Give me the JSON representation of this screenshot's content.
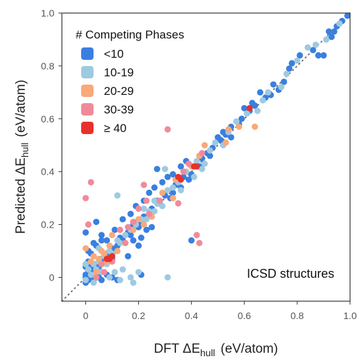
{
  "chart_data": {
    "type": "scatter",
    "xlabel": {
      "main": "DFT ΔE",
      "sub": "hull",
      "unit": "(eV/atom)"
    },
    "ylabel": {
      "main": "Predicted ΔE",
      "sub": "hull",
      "unit": "(eV/atom)"
    },
    "xlim": [
      -0.09,
      1.0
    ],
    "ylim": [
      -0.09,
      1.0
    ],
    "x_ticks": [
      {
        "value": 0,
        "label": "0"
      },
      {
        "value": 0.2,
        "label": "0.2"
      },
      {
        "value": 0.4,
        "label": "0.4"
      },
      {
        "value": 0.6,
        "label": "0.6"
      },
      {
        "value": 0.8,
        "label": "0.8"
      },
      {
        "value": 1.0,
        "label": "1.0"
      }
    ],
    "y_ticks": [
      {
        "value": 0,
        "label": "0"
      },
      {
        "value": 0.2,
        "label": "0.2"
      },
      {
        "value": 0.4,
        "label": "0.4"
      },
      {
        "value": 0.6,
        "label": "0.6"
      },
      {
        "value": 0.8,
        "label": "0.8"
      },
      {
        "value": 1.0,
        "label": "1.0"
      }
    ],
    "grid": false,
    "reference_line": {
      "style": "dotted",
      "x": [
        -0.09,
        1.0
      ],
      "y": [
        -0.09,
        1.0
      ]
    },
    "legend": {
      "title": "# Competing Phases",
      "position": "top-left"
    },
    "annotation": "ICSD structures",
    "series": [
      {
        "name": "<10",
        "color": "#3a7fe0",
        "points": [
          [
            0.99,
            0.99
          ],
          [
            0.97,
            0.97
          ],
          [
            0.95,
            0.95
          ],
          [
            0.94,
            0.93
          ],
          [
            0.92,
            0.93
          ],
          [
            0.93,
            0.91
          ],
          [
            0.88,
            0.84
          ],
          [
            0.9,
            0.84
          ],
          [
            0.86,
            0.86
          ],
          [
            0.81,
            0.84
          ],
          [
            0.78,
            0.81
          ],
          [
            0.77,
            0.79
          ],
          [
            0.73,
            0.71
          ],
          [
            0.71,
            0.73
          ],
          [
            0.7,
            0.69
          ],
          [
            0.66,
            0.7
          ],
          [
            0.63,
            0.66
          ],
          [
            0.6,
            0.64
          ],
          [
            0.59,
            0.6
          ],
          [
            0.58,
            0.58
          ],
          [
            0.55,
            0.57
          ],
          [
            0.53,
            0.54
          ],
          [
            0.51,
            0.52
          ],
          [
            0.48,
            0.49
          ],
          [
            0.46,
            0.47
          ],
          [
            0.44,
            0.45
          ],
          [
            0.43,
            0.42
          ],
          [
            0.41,
            0.42
          ],
          [
            0.4,
            0.39
          ],
          [
            0.39,
            0.37
          ],
          [
            0.37,
            0.38
          ],
          [
            0.36,
            0.34
          ],
          [
            0.34,
            0.35
          ],
          [
            0.33,
            0.32
          ],
          [
            0.32,
            0.3
          ],
          [
            0.3,
            0.31
          ],
          [
            0.28,
            0.28
          ],
          [
            0.27,
            0.29
          ],
          [
            0.25,
            0.26
          ],
          [
            0.24,
            0.24
          ],
          [
            0.22,
            0.23
          ],
          [
            0.21,
            0.21
          ],
          [
            0.2,
            0.19
          ],
          [
            0.18,
            0.2
          ],
          [
            0.17,
            0.16
          ],
          [
            0.16,
            0.17
          ],
          [
            0.14,
            0.14
          ],
          [
            0.13,
            0.15
          ],
          [
            0.12,
            0.12
          ],
          [
            0.11,
            0.1
          ],
          [
            0.1,
            0.11
          ],
          [
            0.09,
            0.08
          ],
          [
            0.08,
            0.09
          ],
          [
            0.07,
            0.06
          ],
          [
            0.06,
            0.07
          ],
          [
            0.05,
            0.04
          ],
          [
            0.04,
            0.05
          ],
          [
            0.03,
            0.03
          ],
          [
            0.02,
            0.04
          ],
          [
            0.01,
            0.02
          ],
          [
            0.0,
            0.01
          ],
          [
            0.0,
            0.0
          ],
          [
            0.01,
            -0.01
          ],
          [
            0.02,
            0.0
          ],
          [
            0.0,
            -0.02
          ],
          [
            0.03,
            -0.01
          ],
          [
            0.05,
            0.0
          ],
          [
            0.06,
            -0.01
          ],
          [
            0.08,
            0.01
          ],
          [
            0.1,
            0.0
          ],
          [
            0.12,
            -0.01
          ],
          [
            0.01,
            0.06
          ],
          [
            0.0,
            0.04
          ],
          [
            0.02,
            0.09
          ],
          [
            0.04,
            0.12
          ],
          [
            0.06,
            0.14
          ],
          [
            0.0,
            0.17
          ],
          [
            0.01,
            0.1
          ],
          [
            0.11,
            0.18
          ],
          [
            0.14,
            0.22
          ],
          [
            0.17,
            0.24
          ],
          [
            0.19,
            0.27
          ],
          [
            0.22,
            0.29
          ],
          [
            0.24,
            0.32
          ],
          [
            0.26,
            0.34
          ],
          [
            0.29,
            0.36
          ],
          [
            0.31,
            0.38
          ],
          [
            0.33,
            0.39
          ],
          [
            0.36,
            0.42
          ],
          [
            0.38,
            0.44
          ],
          [
            0.27,
            0.41
          ],
          [
            0.18,
            0.14
          ],
          [
            0.2,
            0.12
          ],
          [
            0.21,
            0.15
          ],
          [
            0.23,
            0.18
          ],
          [
            0.25,
            0.19
          ],
          [
            0.06,
            0.16
          ],
          [
            0.08,
            0.14
          ],
          [
            0.1,
            0.07
          ],
          [
            0.4,
            0.14
          ],
          [
            0.21,
            0.01
          ],
          [
            0.03,
            0.13
          ],
          [
            0.16,
            0.08
          ],
          [
            0.04,
            0.21
          ],
          [
            0.47,
            0.46
          ],
          [
            0.5,
            0.53
          ],
          [
            0.52,
            0.55
          ],
          [
            0.55,
            0.53
          ],
          [
            0.62,
            0.63
          ],
          [
            0.64,
            0.65
          ],
          [
            0.68,
            0.68
          ],
          [
            0.75,
            0.74
          ]
        ]
      },
      {
        "name": "10-19",
        "color": "#9ecae1",
        "points": [
          [
            0.96,
            0.96
          ],
          [
            0.91,
            0.9
          ],
          [
            0.87,
            0.88
          ],
          [
            0.84,
            0.87
          ],
          [
            0.8,
            0.82
          ],
          [
            0.76,
            0.77
          ],
          [
            0.74,
            0.72
          ],
          [
            0.69,
            0.7
          ],
          [
            0.67,
            0.67
          ],
          [
            0.65,
            0.63
          ],
          [
            0.61,
            0.62
          ],
          [
            0.57,
            0.59
          ],
          [
            0.54,
            0.55
          ],
          [
            0.52,
            0.5
          ],
          [
            0.49,
            0.51
          ],
          [
            0.47,
            0.48
          ],
          [
            0.45,
            0.43
          ],
          [
            0.42,
            0.44
          ],
          [
            0.38,
            0.4
          ],
          [
            0.35,
            0.36
          ],
          [
            0.33,
            0.34
          ],
          [
            0.31,
            0.33
          ],
          [
            0.29,
            0.27
          ],
          [
            0.27,
            0.28
          ],
          [
            0.26,
            0.25
          ],
          [
            0.24,
            0.25
          ],
          [
            0.23,
            0.22
          ],
          [
            0.21,
            0.22
          ],
          [
            0.19,
            0.2
          ],
          [
            0.17,
            0.18
          ],
          [
            0.15,
            0.16
          ],
          [
            0.13,
            0.13
          ],
          [
            0.12,
            0.14
          ],
          [
            0.1,
            0.09
          ],
          [
            0.09,
            0.1
          ],
          [
            0.07,
            0.08
          ],
          [
            0.06,
            0.05
          ],
          [
            0.05,
            0.06
          ],
          [
            0.04,
            0.03
          ],
          [
            0.03,
            0.05
          ],
          [
            0.02,
            0.01
          ],
          [
            0.01,
            0.03
          ],
          [
            0.0,
            0.05
          ],
          [
            0.0,
            -0.01
          ],
          [
            0.03,
            -0.02
          ],
          [
            0.06,
            0.02
          ],
          [
            0.09,
            0.0
          ],
          [
            0.11,
            0.02
          ],
          [
            0.13,
            -0.01
          ],
          [
            0.17,
            0.0
          ],
          [
            0.18,
            -0.02
          ],
          [
            0.31,
            0.0
          ],
          [
            0.12,
            0.31
          ],
          [
            0.3,
            0.41
          ],
          [
            0.26,
            0.29
          ],
          [
            0.22,
            0.26
          ],
          [
            0.14,
            0.03
          ],
          [
            0.2,
            0.02
          ],
          [
            0.05,
            0.11
          ],
          [
            0.08,
            0.05
          ],
          [
            0.36,
            0.33
          ],
          [
            0.41,
            0.38
          ],
          [
            0.44,
            0.41
          ]
        ]
      },
      {
        "name": "20-29",
        "color": "#f9a97a",
        "points": [
          [
            0.64,
            0.57
          ],
          [
            0.58,
            0.57
          ],
          [
            0.54,
            0.56
          ],
          [
            0.53,
            0.51
          ],
          [
            0.45,
            0.5
          ],
          [
            0.43,
            0.46
          ],
          [
            0.4,
            0.42
          ],
          [
            0.34,
            0.37
          ],
          [
            0.33,
            0.3
          ],
          [
            0.29,
            0.32
          ],
          [
            0.25,
            0.23
          ],
          [
            0.22,
            0.2
          ],
          [
            0.2,
            0.22
          ],
          [
            0.18,
            0.18
          ],
          [
            0.15,
            0.13
          ],
          [
            0.12,
            0.1
          ],
          [
            0.09,
            0.12
          ],
          [
            0.08,
            0.06
          ],
          [
            0.07,
            0.09
          ],
          [
            0.06,
            0.1
          ],
          [
            0.05,
            0.07
          ],
          [
            0.04,
            0.02
          ],
          [
            0.02,
            0.06
          ],
          [
            0.0,
            0.11
          ],
          [
            0.1,
            0.16
          ],
          [
            0.03,
            0.08
          ]
        ]
      },
      {
        "name": "30-39",
        "color": "#f08a9a",
        "points": [
          [
            0.31,
            0.56
          ],
          [
            0.35,
            0.28
          ],
          [
            0.42,
            0.16
          ],
          [
            0.43,
            0.13
          ],
          [
            0.23,
            0.29
          ],
          [
            0.22,
            0.35
          ],
          [
            0.0,
            0.3
          ],
          [
            0.02,
            0.36
          ],
          [
            0.01,
            0.2
          ],
          [
            0.06,
            0.05
          ],
          [
            0.08,
            0.07
          ],
          [
            0.04,
            0.0
          ],
          [
            0.07,
            0.02
          ],
          [
            0.1,
            0.06
          ],
          [
            0.13,
            0.18
          ],
          [
            0.16,
            0.19
          ],
          [
            0.2,
            0.26
          ],
          [
            0.24,
            0.24
          ],
          [
            0.39,
            0.43
          ],
          [
            0.37,
            0.4
          ],
          [
            0.28,
            0.29
          ],
          [
            0.44,
            0.47
          ],
          [
            0.18,
            0.21
          ],
          [
            0.15,
            0.13
          ]
        ]
      },
      {
        "name": "≥ 40",
        "color": "#e8312c",
        "points": [
          [
            0.62,
            0.64
          ],
          [
            0.41,
            0.42
          ],
          [
            0.36,
            0.37
          ],
          [
            0.35,
            0.38
          ],
          [
            0.09,
            0.07
          ],
          [
            0.08,
            0.07
          ],
          [
            0.1,
            0.08
          ],
          [
            0.42,
            0.42
          ]
        ]
      }
    ]
  }
}
